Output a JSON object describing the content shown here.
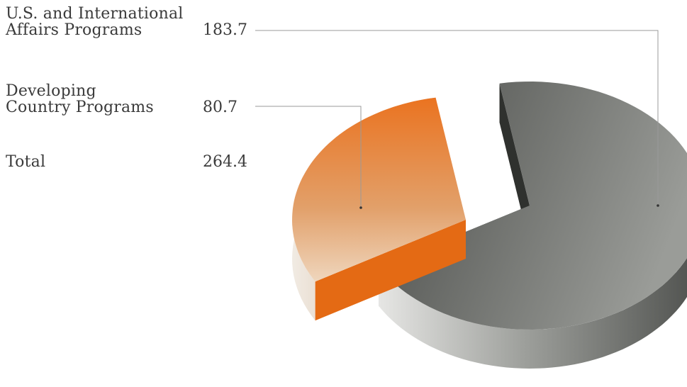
{
  "chart_data": {
    "type": "pie",
    "title": "",
    "series": [
      {
        "name": "",
        "slices": [
          {
            "label_lines": [
              "U.S. and International",
              "Affairs Programs"
            ],
            "value": 183.7,
            "display": "183.7"
          },
          {
            "label_lines": [
              "Developing",
              "Country Programs"
            ],
            "value": 80.7,
            "display": "80.7"
          }
        ]
      }
    ],
    "total": {
      "label": "Total",
      "display": "264.4",
      "value": 264.4
    },
    "legend": "left",
    "colors": {
      "us_international": "#6e706c",
      "developing": "#e9782a",
      "text": "#3a3a3a",
      "leader": "#9a9a9a"
    }
  }
}
